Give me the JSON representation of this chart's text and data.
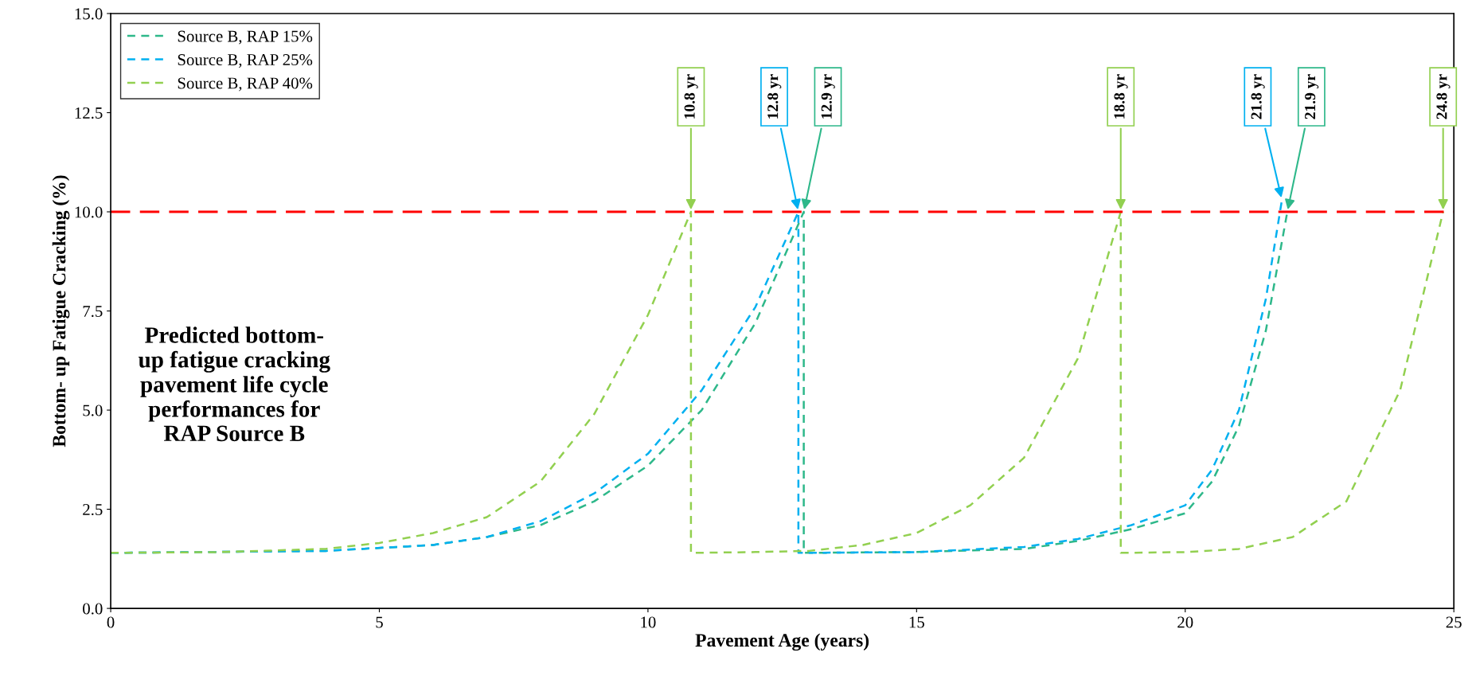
{
  "chart_data": {
    "type": "line",
    "xlabel": "Pavement Age (years)",
    "ylabel": "Bottom- up Fatigue Cracking (%)",
    "xlim": [
      0,
      25
    ],
    "xticks": [
      0,
      5,
      10,
      15,
      20,
      25
    ],
    "ylim": [
      0,
      15
    ],
    "yticks": [
      {
        "value": 0,
        "label": "0.0"
      },
      {
        "value": 2.5,
        "label": "2.5"
      },
      {
        "value": 5,
        "label": "5.0"
      },
      {
        "value": 7.5,
        "label": "7.5"
      },
      {
        "value": 10,
        "label": "10.0"
      },
      {
        "value": 12.5,
        "label": "12.5"
      },
      {
        "value": 15,
        "label": "15.0"
      }
    ],
    "grid": false,
    "legend": "top left",
    "line_style": "dashed",
    "marker": "none",
    "series": [
      {
        "name": "Source B, RAP 15%",
        "color": "#2eb88a",
        "x": [
          0,
          4,
          6,
          7,
          8,
          9,
          10,
          11,
          12,
          12.9,
          12.9,
          15,
          17,
          18,
          19,
          20,
          20.5,
          21,
          21.5,
          21.9
        ],
        "values": [
          1.4,
          1.45,
          1.6,
          1.8,
          2.1,
          2.7,
          3.6,
          5.0,
          7.2,
          10,
          1.4,
          1.42,
          1.5,
          1.7,
          2.0,
          2.4,
          3.2,
          4.6,
          7.0,
          10
        ]
      },
      {
        "name": "Source B, RAP 25%",
        "color": "#00b0f0",
        "x": [
          0,
          4,
          6,
          7,
          8,
          9,
          10,
          11,
          12,
          12.8,
          12.8,
          15,
          17,
          18,
          19,
          20,
          20.5,
          21,
          21.5,
          21.8
        ],
        "values": [
          1.4,
          1.45,
          1.6,
          1.8,
          2.2,
          2.9,
          3.9,
          5.5,
          7.6,
          10,
          1.4,
          1.42,
          1.55,
          1.75,
          2.1,
          2.6,
          3.5,
          5.0,
          7.8,
          10.3
        ]
      },
      {
        "name": "Source B, RAP 40%",
        "color": "#92d050",
        "x": [
          0,
          2,
          4,
          5,
          6,
          7,
          8,
          9,
          10,
          10.8,
          10.8,
          12,
          13,
          14,
          15,
          16,
          17,
          18,
          18.8,
          18.8,
          20,
          21,
          22,
          23,
          24,
          24.8
        ],
        "values": [
          1.4,
          1.42,
          1.5,
          1.65,
          1.9,
          2.3,
          3.2,
          4.9,
          7.4,
          10,
          1.4,
          1.42,
          1.45,
          1.6,
          1.9,
          2.6,
          3.8,
          6.3,
          10,
          1.4,
          1.42,
          1.5,
          1.8,
          2.7,
          5.5,
          10
        ]
      }
    ],
    "ref_lines": [
      {
        "axis": "y",
        "value": 10,
        "color": "#ff0000",
        "line_style": "dashed"
      }
    ],
    "annotations": [
      "Predicted bottom-\nup fatigue cracking\npavement life cycle\nperformances for\nRAP Source B",
      {
        "text": "10.8 yr",
        "x": 10.8,
        "y": 10
      },
      {
        "text": "12.8 yr",
        "x": 12.8,
        "y": 10
      },
      {
        "text": "12.9 yr",
        "x": 12.9,
        "y": 10
      },
      {
        "text": "18.8 yr",
        "x": 18.8,
        "y": 10
      },
      {
        "text": "21.8 yr",
        "x": 21.8,
        "y": 10.3
      },
      {
        "text": "21.9 yr",
        "x": 21.9,
        "y": 10
      },
      {
        "text": "24.8 yr",
        "x": 24.8,
        "y": 10
      }
    ]
  }
}
